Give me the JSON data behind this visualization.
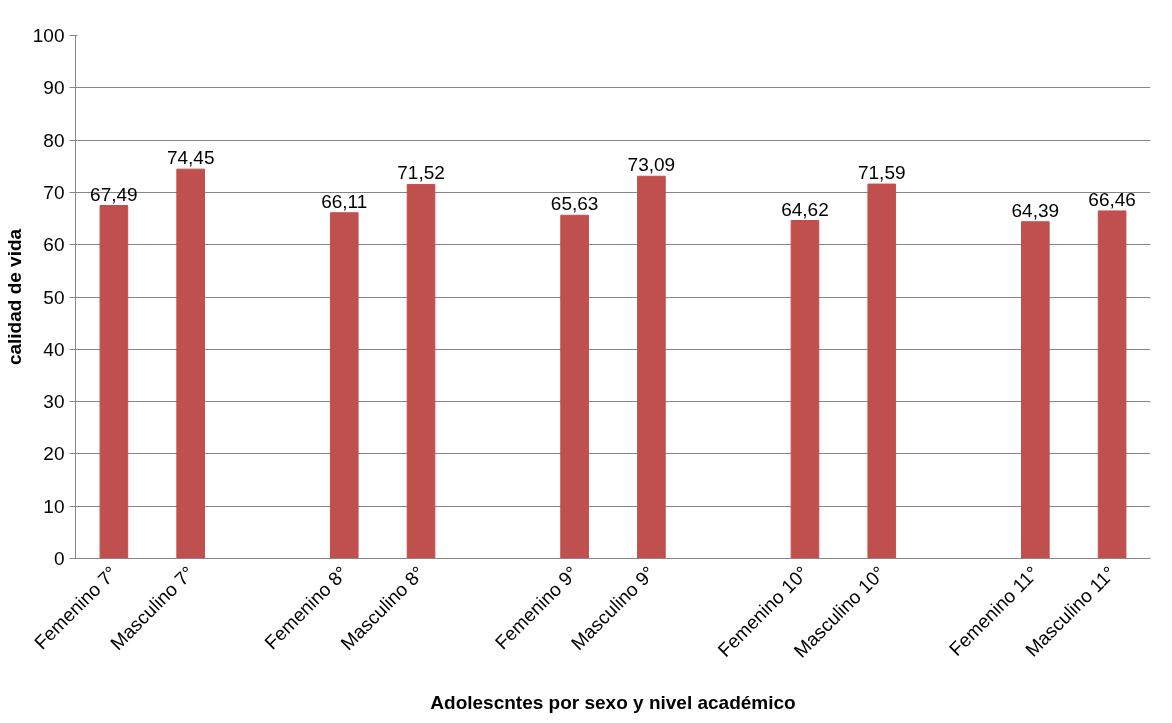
{
  "chart_data": {
    "type": "bar",
    "xlabel": "Adolescntes por sexo y nivel académico",
    "ylabel": "calidad de vida",
    "categories": [
      "Femenino 7°",
      "Masculino 7°",
      null,
      "Femenino 8°",
      "Masculino 8°",
      null,
      "Femenino 9°",
      "Masculino 9°",
      null,
      "Femenino 10°",
      "Masculino 10°",
      null,
      "Femenino 11°",
      "Masculino 11°"
    ],
    "values": [
      67.49,
      74.45,
      null,
      66.11,
      71.52,
      null,
      65.63,
      73.09,
      null,
      64.62,
      71.59,
      null,
      64.39,
      66.46
    ],
    "value_labels": [
      "67,49",
      "74,45",
      null,
      "66,11",
      "71,52",
      null,
      "65,63",
      "73,09",
      null,
      "64,62",
      "71,59",
      null,
      "64,39",
      "66,46"
    ],
    "color": "#c0504d",
    "ylim": [
      0,
      100
    ],
    "yticks": [
      0,
      10,
      20,
      30,
      40,
      50,
      60,
      70,
      80,
      90,
      100
    ],
    "grid": "y"
  }
}
